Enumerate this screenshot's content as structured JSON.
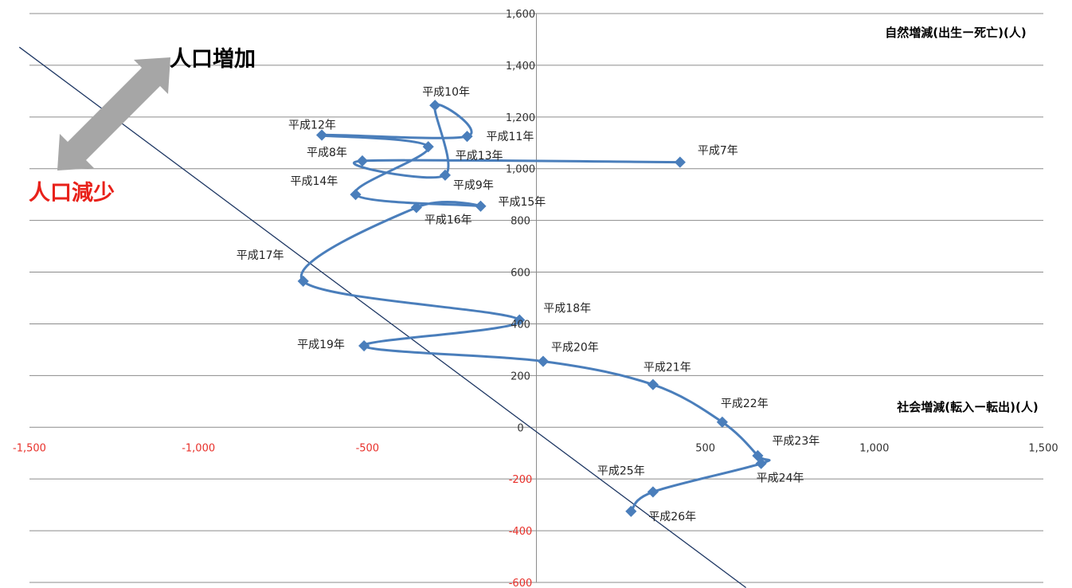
{
  "chart_data": {
    "type": "line",
    "xlabel": "社会増減(転入ー転出)(人)",
    "ylabel": "自然増減(出生ー死亡)(人)",
    "xlim": [
      -1500,
      1500
    ],
    "ylim": [
      -600,
      1600
    ],
    "x_ticks": [
      "-1,500",
      "-1,000",
      "-500",
      "0",
      "500",
      "1,000",
      "1,500"
    ],
    "y_ticks": [
      "-600",
      "-400",
      "-200",
      "0",
      "200",
      "400",
      "600",
      "800",
      "1,000",
      "1,200",
      "1,400",
      "1,600"
    ],
    "grid": "horizontal",
    "series_color": "#4a7ebb",
    "points": [
      {
        "label": "平成7年",
        "x": 425,
        "y": 1025
      },
      {
        "label": "平成8年",
        "x": -515,
        "y": 1030
      },
      {
        "label": "平成9年",
        "x": -270,
        "y": 975
      },
      {
        "label": "平成10年",
        "x": -300,
        "y": 1245
      },
      {
        "label": "平成11年",
        "x": -205,
        "y": 1125
      },
      {
        "label": "平成12年",
        "x": -635,
        "y": 1130
      },
      {
        "label": "平成13年",
        "x": -320,
        "y": 1085
      },
      {
        "label": "平成14年",
        "x": -535,
        "y": 900
      },
      {
        "label": "平成15年",
        "x": -165,
        "y": 855
      },
      {
        "label": "平成16年",
        "x": -355,
        "y": 850
      },
      {
        "label": "平成17年",
        "x": -690,
        "y": 565
      },
      {
        "label": "平成18年",
        "x": -50,
        "y": 415
      },
      {
        "label": "平成19年",
        "x": -510,
        "y": 315
      },
      {
        "label": "平成20年",
        "x": 20,
        "y": 255
      },
      {
        "label": "平成21年",
        "x": 345,
        "y": 165
      },
      {
        "label": "平成22年",
        "x": 550,
        "y": 20
      },
      {
        "label": "平成23年",
        "x": 655,
        "y": -110
      },
      {
        "label": "平成24年",
        "x": 665,
        "y": -140
      },
      {
        "label": "平成25年",
        "x": 345,
        "y": -250
      },
      {
        "label": "平成26年",
        "x": 280,
        "y": -325
      }
    ],
    "reference_line": {
      "color": "#1f3864",
      "from": [
        -1530,
        1470
      ],
      "to": [
        620,
        -620
      ]
    }
  },
  "annotations": {
    "increase": "人口増加",
    "decrease": "人口減少",
    "arrow_color": "#a6a6a6",
    "increase_color": "#000000",
    "decrease_color": "#e8211a"
  }
}
